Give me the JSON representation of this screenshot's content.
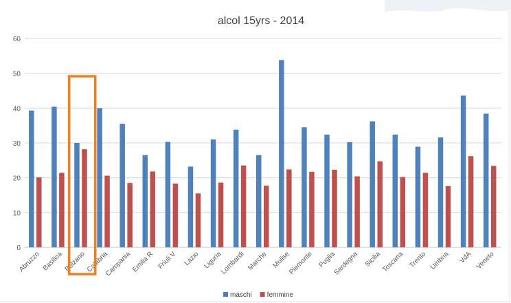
{
  "chart_data": {
    "type": "bar",
    "title": "alcol 15yrs - 2014",
    "xlabel": "",
    "ylabel": "",
    "ylim": [
      0,
      60
    ],
    "yticks": [
      0,
      10,
      20,
      30,
      40,
      50,
      60
    ],
    "grid": true,
    "legend_position": "bottom",
    "categories": [
      "Abruzzo",
      "Basilica",
      "Bolzano",
      "Calabria",
      "Campania",
      "Emilia R",
      "Friuli V",
      "Lazio",
      "Liguria",
      "Lombardi",
      "Marche",
      "Molise",
      "Piemonte",
      "Puglia",
      "Sardegna",
      "Sicilia",
      "Toscana",
      "Trento",
      "Umbria",
      "VdA",
      "Veneto"
    ],
    "series": [
      {
        "name": "maschi",
        "color": "#4f81bd",
        "values": [
          39.3,
          40.4,
          30.0,
          40.0,
          35.5,
          26.5,
          30.3,
          23.2,
          31.0,
          33.8,
          26.5,
          53.8,
          34.5,
          32.4,
          30.2,
          36.2,
          32.4,
          28.9,
          31.6,
          43.6,
          38.4
        ]
      },
      {
        "name": "femmine",
        "color": "#c0504d",
        "values": [
          20.1,
          21.4,
          28.2,
          20.6,
          18.5,
          21.8,
          18.3,
          15.5,
          18.6,
          23.5,
          17.7,
          22.4,
          21.7,
          22.3,
          20.4,
          24.7,
          20.2,
          21.4,
          17.6,
          26.2,
          23.4
        ]
      }
    ],
    "highlight": {
      "category": "Bolzano",
      "color": "#f07f1c"
    }
  }
}
